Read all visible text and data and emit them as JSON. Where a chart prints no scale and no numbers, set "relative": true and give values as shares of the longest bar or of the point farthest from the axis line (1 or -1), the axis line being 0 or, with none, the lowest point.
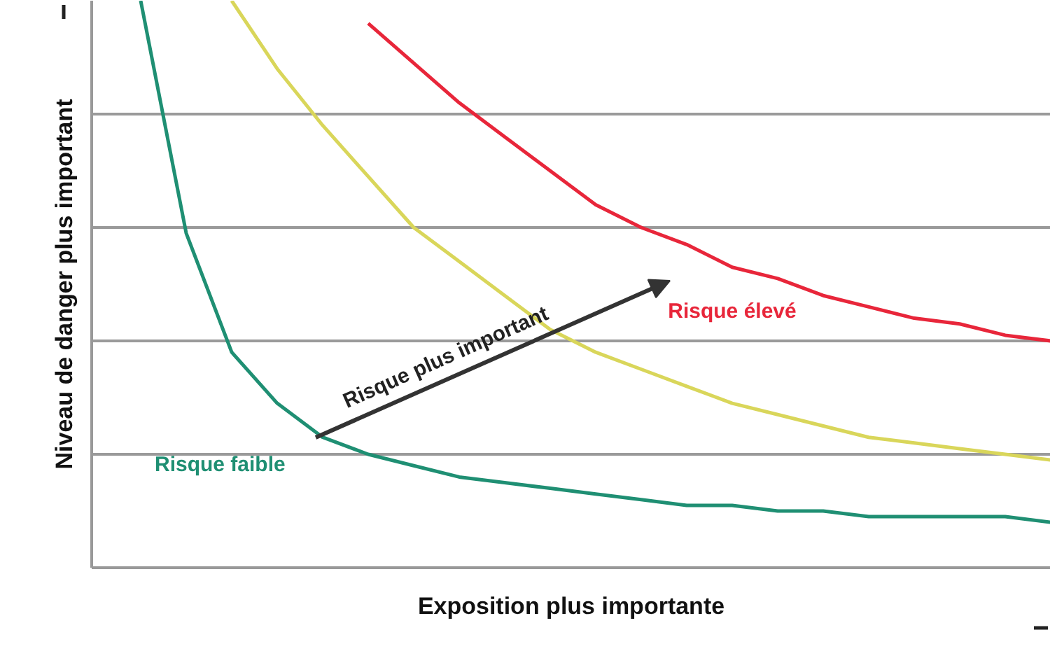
{
  "chart_data": {
    "type": "line",
    "relative": true,
    "xlabel": "Exposition plus importante",
    "ylabel": "Niveau de danger plus important",
    "grid": "y",
    "marker": "none",
    "line_style": "solid",
    "categories": [
      null,
      null,
      null,
      null,
      null,
      null,
      null,
      null,
      null,
      null,
      null,
      null,
      null,
      null,
      null,
      null,
      null,
      null,
      null,
      null,
      null
    ],
    "series": [
      {
        "name": "Risque faible",
        "color": "#1f8f73",
        "values": [
          1.0,
          0.59,
          0.38,
          0.29,
          0.23,
          0.2,
          0.18,
          0.16,
          0.15,
          0.14,
          0.13,
          0.12,
          0.11,
          0.11,
          0.1,
          0.1,
          0.09,
          0.09,
          0.09,
          0.09,
          0.08
        ]
      },
      {
        "color": "#d9d65a",
        "values": [
          null,
          null,
          1.0,
          0.88,
          0.78,
          0.69,
          0.6,
          0.54,
          0.48,
          0.42,
          0.38,
          0.35,
          0.32,
          0.29,
          0.27,
          0.25,
          0.23,
          0.22,
          0.21,
          0.2,
          0.19
        ]
      },
      {
        "name": "Risque élevé",
        "color": "#e8263a",
        "values": [
          null,
          null,
          null,
          null,
          null,
          0.96,
          0.89,
          0.82,
          0.76,
          0.7,
          0.64,
          0.6,
          0.57,
          0.53,
          0.51,
          0.48,
          0.46,
          0.44,
          0.43,
          0.41,
          0.4
        ]
      }
    ],
    "annotations": [
      "Risque plus important"
    ]
  }
}
